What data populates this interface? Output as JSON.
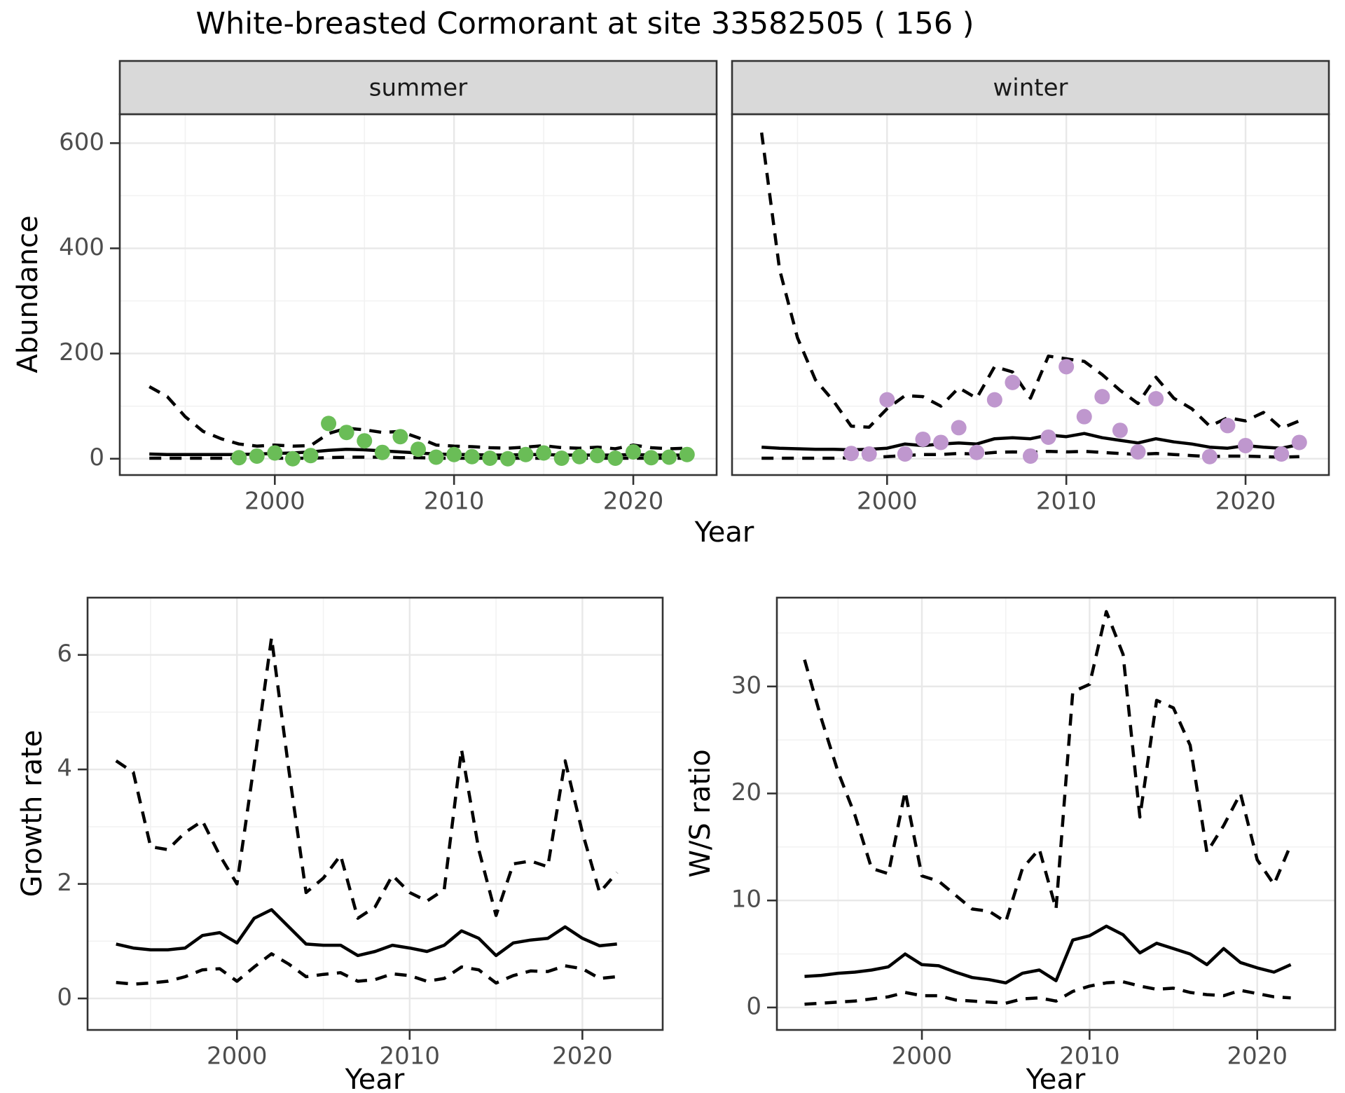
{
  "title": "White-breasted Cormorant at site 33582505 ( 156 )",
  "facets": [
    "summer",
    "winter"
  ],
  "axes": {
    "x_label": "Year",
    "abundance_label": "Abundance",
    "growth_label": "Growth rate",
    "ws_label": "W/S ratio"
  },
  "colors": {
    "summer_point": "#6ABD57",
    "winter_point": "#BF97CE",
    "line": "#000000",
    "strip_fill": "#D9D9D9",
    "panel_border": "#333333",
    "grid_major": "#E8E8E8",
    "grid_minor": "#F2F2F2",
    "tick_text": "#4D4D4D"
  },
  "chart_data": [
    {
      "type": "line",
      "facet": "summer",
      "title": "Abundance - summer",
      "xlabel": "Year",
      "ylabel": "Abundance",
      "xlim": [
        1991.35,
        2024.65
      ],
      "ylim": [
        -31,
        655
      ],
      "xticks": [
        2000,
        2010,
        2020
      ],
      "yticks": [
        0,
        200,
        400,
        600
      ],
      "x": [
        1993,
        1994,
        1995,
        1996,
        1997,
        1998,
        1999,
        2000,
        2001,
        2002,
        2003,
        2004,
        2005,
        2006,
        2007,
        2008,
        2009,
        2010,
        2011,
        2012,
        2013,
        2014,
        2015,
        2016,
        2017,
        2018,
        2019,
        2020,
        2021,
        2022,
        2023
      ],
      "series": [
        {
          "name": "median",
          "style": "solid",
          "values": [
            9,
            8,
            8,
            8,
            8,
            8,
            9,
            10,
            11,
            13,
            16,
            18,
            17,
            15,
            13,
            11,
            9,
            8,
            8,
            7,
            7,
            8,
            8,
            7,
            7,
            7,
            7,
            8,
            7,
            7,
            7
          ]
        },
        {
          "name": "upper_ci",
          "style": "dashed",
          "values": [
            137,
            118,
            80,
            52,
            38,
            28,
            24,
            26,
            24,
            25,
            48,
            58,
            55,
            50,
            52,
            40,
            26,
            24,
            23,
            21,
            20,
            22,
            25,
            21,
            20,
            22,
            19,
            26,
            21,
            19,
            20
          ]
        },
        {
          "name": "lower_ci",
          "style": "dashed",
          "values": [
            1,
            1,
            1,
            1,
            1,
            1,
            1,
            1,
            1,
            1,
            2,
            3,
            3,
            3,
            2,
            2,
            1,
            1,
            1,
            1,
            1,
            1,
            1,
            1,
            1,
            1,
            1,
            1,
            1,
            1,
            1
          ]
        }
      ],
      "points": {
        "name": "observed_counts",
        "color_key": "summer_point",
        "x": [
          1998,
          1999,
          2000,
          2001,
          2002,
          2003,
          2004,
          2005,
          2006,
          2007,
          2008,
          2009,
          2010,
          2011,
          2012,
          2013,
          2014,
          2015,
          2016,
          2017,
          2018,
          2019,
          2020,
          2021,
          2022,
          2023
        ],
        "y": [
          2,
          5,
          11,
          0,
          6,
          67,
          50,
          34,
          12,
          42,
          18,
          3,
          8,
          4,
          1,
          0,
          8,
          11,
          1,
          4,
          6,
          1,
          13,
          2,
          3,
          8
        ]
      }
    },
    {
      "type": "line",
      "facet": "winter",
      "title": "Abundance - winter",
      "xlabel": "Year",
      "ylabel": "Abundance",
      "xlim": [
        1991.35,
        2024.65
      ],
      "ylim": [
        -31,
        655
      ],
      "xticks": [
        2000,
        2010,
        2020
      ],
      "yticks": [
        0,
        200,
        400,
        600
      ],
      "x": [
        1993,
        1994,
        1995,
        1996,
        1997,
        1998,
        1999,
        2000,
        2001,
        2002,
        2003,
        2004,
        2005,
        2006,
        2007,
        2008,
        2009,
        2010,
        2011,
        2012,
        2013,
        2014,
        2015,
        2016,
        2017,
        2018,
        2019,
        2020,
        2021,
        2022,
        2023
      ],
      "series": [
        {
          "name": "median",
          "style": "solid",
          "values": [
            22,
            20,
            19,
            18,
            18,
            17,
            18,
            20,
            28,
            25,
            28,
            30,
            28,
            38,
            40,
            38,
            45,
            42,
            48,
            40,
            35,
            30,
            38,
            32,
            28,
            22,
            20,
            25,
            22,
            20,
            27
          ]
        },
        {
          "name": "upper_ci",
          "style": "dashed",
          "values": [
            620,
            360,
            230,
            150,
            110,
            62,
            60,
            95,
            120,
            118,
            100,
            135,
            115,
            175,
            165,
            115,
            195,
            190,
            185,
            160,
            130,
            105,
            155,
            115,
            95,
            62,
            78,
            72,
            88,
            58,
            72
          ]
        },
        {
          "name": "lower_ci",
          "style": "dashed",
          "values": [
            1,
            1,
            1,
            1,
            1,
            2,
            2,
            4,
            6,
            8,
            8,
            10,
            9,
            12,
            13,
            12,
            14,
            13,
            14,
            12,
            10,
            8,
            10,
            8,
            6,
            4,
            5,
            5,
            4,
            3,
            4
          ]
        }
      ],
      "points": {
        "name": "observed_counts",
        "color_key": "winter_point",
        "x": [
          1998,
          1999,
          2000,
          2001,
          2002,
          2003,
          2004,
          2005,
          2006,
          2007,
          2008,
          2009,
          2010,
          2011,
          2012,
          2013,
          2014,
          2015,
          2018,
          2019,
          2020,
          2022,
          2023
        ],
        "y": [
          10,
          9,
          112,
          9,
          37,
          31,
          59,
          12,
          112,
          145,
          5,
          41,
          175,
          80,
          118,
          54,
          13,
          114,
          4,
          63,
          25,
          9,
          31
        ]
      }
    },
    {
      "type": "line",
      "facet": null,
      "title": "Growth rate",
      "xlabel": "Year",
      "ylabel": "Growth rate",
      "xlim": [
        1991.35,
        2024.65
      ],
      "ylim": [
        -0.55,
        7.0
      ],
      "xticks": [
        2000,
        2010,
        2020
      ],
      "yticks": [
        0,
        2,
        4,
        6
      ],
      "x": [
        1993,
        1994,
        1995,
        1996,
        1997,
        1998,
        1999,
        2000,
        2001,
        2002,
        2003,
        2004,
        2005,
        2006,
        2007,
        2008,
        2009,
        2010,
        2011,
        2012,
        2013,
        2014,
        2015,
        2016,
        2017,
        2018,
        2019,
        2020,
        2021,
        2022
      ],
      "series": [
        {
          "name": "median",
          "style": "solid",
          "values": [
            0.95,
            0.88,
            0.85,
            0.85,
            0.88,
            1.1,
            1.15,
            0.97,
            1.4,
            1.55,
            1.25,
            0.95,
            0.93,
            0.93,
            0.75,
            0.82,
            0.93,
            0.88,
            0.82,
            0.93,
            1.18,
            1.05,
            0.75,
            0.97,
            1.02,
            1.05,
            1.25,
            1.05,
            0.92,
            0.95
          ]
        },
        {
          "name": "upper_ci",
          "style": "dashed",
          "values": [
            4.15,
            3.95,
            2.65,
            2.6,
            2.9,
            3.1,
            2.5,
            2.0,
            4.1,
            6.3,
            4.0,
            1.85,
            2.1,
            2.5,
            1.4,
            1.6,
            2.15,
            1.85,
            1.7,
            1.9,
            4.35,
            2.6,
            1.45,
            2.35,
            2.4,
            2.3,
            4.15,
            2.9,
            1.85,
            2.2
          ]
        },
        {
          "name": "lower_ci",
          "style": "dashed",
          "values": [
            0.28,
            0.25,
            0.27,
            0.3,
            0.38,
            0.5,
            0.52,
            0.3,
            0.55,
            0.78,
            0.6,
            0.38,
            0.42,
            0.45,
            0.3,
            0.33,
            0.43,
            0.4,
            0.3,
            0.35,
            0.55,
            0.5,
            0.27,
            0.4,
            0.48,
            0.47,
            0.57,
            0.52,
            0.35,
            0.38
          ]
        }
      ]
    },
    {
      "type": "line",
      "facet": null,
      "title": "W/S ratio",
      "xlabel": "Year",
      "ylabel": "W/S ratio",
      "xlim": [
        1991.35,
        2024.65
      ],
      "ylim": [
        -2.1,
        38.3
      ],
      "xticks": [
        2000,
        2010,
        2020
      ],
      "yticks": [
        0,
        10,
        20,
        30
      ],
      "x": [
        1993,
        1994,
        1995,
        1996,
        1997,
        1998,
        1999,
        2000,
        2001,
        2002,
        2003,
        2004,
        2005,
        2006,
        2007,
        2008,
        2009,
        2010,
        2011,
        2012,
        2013,
        2014,
        2015,
        2016,
        2017,
        2018,
        2019,
        2020,
        2021,
        2022
      ],
      "series": [
        {
          "name": "median",
          "style": "solid",
          "values": [
            2.9,
            3.0,
            3.2,
            3.3,
            3.5,
            3.8,
            5.0,
            4.0,
            3.9,
            3.3,
            2.8,
            2.6,
            2.3,
            3.2,
            3.5,
            2.5,
            6.3,
            6.7,
            7.6,
            6.8,
            5.1,
            6.0,
            5.5,
            5.0,
            4.0,
            5.5,
            4.2,
            3.7,
            3.3,
            4.0
          ]
        },
        {
          "name": "upper_ci",
          "style": "dashed",
          "values": [
            32.5,
            27.0,
            22.0,
            18.0,
            13.0,
            12.5,
            20.2,
            12.3,
            11.8,
            10.5,
            9.2,
            9.0,
            8.0,
            13.0,
            14.8,
            9.2,
            29.5,
            30.2,
            37.0,
            33.0,
            17.8,
            28.7,
            28.0,
            24.5,
            14.5,
            17.0,
            20.0,
            13.8,
            11.5,
            15.2
          ]
        },
        {
          "name": "lower_ci",
          "style": "dashed",
          "values": [
            0.3,
            0.4,
            0.5,
            0.6,
            0.8,
            1.0,
            1.4,
            1.1,
            1.1,
            0.7,
            0.6,
            0.5,
            0.4,
            0.8,
            0.9,
            0.6,
            1.5,
            2.0,
            2.3,
            2.4,
            2.0,
            1.7,
            1.8,
            1.4,
            1.2,
            1.1,
            1.6,
            1.3,
            1.0,
            0.9
          ]
        }
      ]
    }
  ]
}
